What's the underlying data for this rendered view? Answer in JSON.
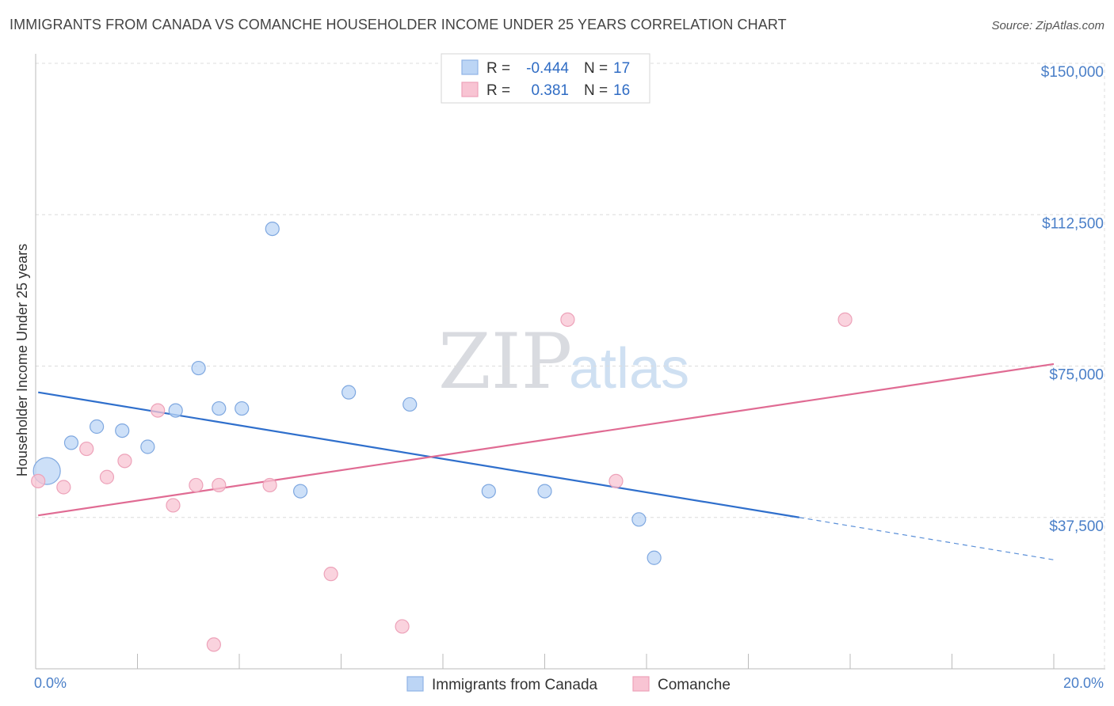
{
  "title": "IMMIGRANTS FROM CANADA VS COMANCHE HOUSEHOLDER INCOME UNDER 25 YEARS CORRELATION CHART",
  "source": "Source: ZipAtlas.com",
  "watermark": {
    "zip": "ZIP",
    "atlas": "atlas"
  },
  "colors": {
    "blue": "#4a86d8",
    "blue_fill": "#bcd5f5",
    "pink": "#e06b93",
    "pink_fill": "#f8c4d3",
    "tick": "#4a7fc8",
    "grid": "#dcdcdc"
  },
  "legend": {
    "rows": [
      {
        "r_label": "R =",
        "r_value": "-0.444",
        "n_label": "N =",
        "n_value": "17"
      },
      {
        "r_label": "R =",
        "r_value": "0.381",
        "n_label": "N =",
        "n_value": "16"
      }
    ]
  },
  "chart_data": {
    "type": "scatter",
    "title": "IMMIGRANTS FROM CANADA VS COMANCHE HOUSEHOLDER INCOME UNDER 25 YEARS CORRELATION CHART",
    "xlabel": "",
    "ylabel": "Householder Income Under 25 years",
    "xlim": [
      0,
      20
    ],
    "ylim": [
      0,
      150000
    ],
    "x_ticks": [
      "0.0%",
      "20.0%"
    ],
    "y_ticks": [
      {
        "value": 37500,
        "label": "$37,500"
      },
      {
        "value": 75000,
        "label": "$75,000"
      },
      {
        "value": 112500,
        "label": "$112,500"
      },
      {
        "value": 150000,
        "label": "$150,000"
      }
    ],
    "series": [
      {
        "name": "Immigrants from Canada",
        "color": "blue",
        "r": -0.444,
        "n": 17,
        "points": [
          {
            "x": 0.22,
            "y": 49000,
            "big": true
          },
          {
            "x": 0.7,
            "y": 56000
          },
          {
            "x": 1.2,
            "y": 60000
          },
          {
            "x": 1.7,
            "y": 59000
          },
          {
            "x": 2.2,
            "y": 55000
          },
          {
            "x": 2.75,
            "y": 64000
          },
          {
            "x": 3.2,
            "y": 74500
          },
          {
            "x": 3.6,
            "y": 64500
          },
          {
            "x": 4.05,
            "y": 64500
          },
          {
            "x": 4.65,
            "y": 109000
          },
          {
            "x": 5.2,
            "y": 44000
          },
          {
            "x": 6.15,
            "y": 68500
          },
          {
            "x": 7.35,
            "y": 65500
          },
          {
            "x": 8.9,
            "y": 44000
          },
          {
            "x": 10.0,
            "y": 44000
          },
          {
            "x": 11.85,
            "y": 37000
          },
          {
            "x": 12.15,
            "y": 27500
          }
        ],
        "trend": {
          "x0": 0.05,
          "y0": 68500,
          "x1": 15.0,
          "y1": 37500,
          "dash_to_x": 20.0,
          "dash_to_y": 27000
        }
      },
      {
        "name": "Comanche",
        "color": "pink",
        "r": 0.381,
        "n": 16,
        "points": [
          {
            "x": 0.05,
            "y": 46500
          },
          {
            "x": 0.55,
            "y": 45000
          },
          {
            "x": 1.0,
            "y": 54500
          },
          {
            "x": 1.4,
            "y": 47500
          },
          {
            "x": 1.75,
            "y": 51500
          },
          {
            "x": 2.4,
            "y": 64000
          },
          {
            "x": 2.7,
            "y": 40500
          },
          {
            "x": 3.15,
            "y": 45500
          },
          {
            "x": 3.6,
            "y": 45500
          },
          {
            "x": 3.5,
            "y": 6000
          },
          {
            "x": 4.6,
            "y": 45500
          },
          {
            "x": 5.8,
            "y": 23500
          },
          {
            "x": 7.2,
            "y": 10500
          },
          {
            "x": 10.45,
            "y": 86500
          },
          {
            "x": 11.4,
            "y": 46500
          },
          {
            "x": 15.9,
            "y": 86500
          }
        ],
        "trend": {
          "x0": 0.05,
          "y0": 38000,
          "x1": 20.0,
          "y1": 75500
        }
      }
    ]
  }
}
